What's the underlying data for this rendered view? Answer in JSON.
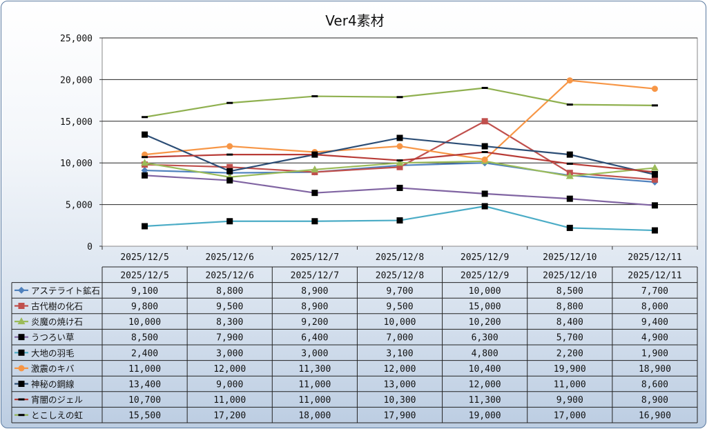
{
  "chart_data": {
    "type": "line",
    "title": "Ver4素材",
    "categories": [
      "2025/12/5",
      "2025/12/6",
      "2025/12/7",
      "2025/12/8",
      "2025/12/9",
      "2025/12/10",
      "2025/12/11"
    ],
    "ylim": [
      0,
      25000
    ],
    "yticks": [
      0,
      5000,
      10000,
      15000,
      20000,
      25000
    ],
    "ytick_labels": [
      "0",
      "5,000",
      "10,000",
      "15,000",
      "20,000",
      "25,000"
    ],
    "grid": true,
    "legend": "data-table-below",
    "series": [
      {
        "name": "アステライト鉱石",
        "color": "#4f81bd",
        "marker": "diamond",
        "values": [
          9100,
          8800,
          8900,
          9700,
          10000,
          8500,
          7700
        ],
        "labels": [
          "9,100",
          "8,800",
          "8,900",
          "9,700",
          "10,000",
          "8,500",
          "7,700"
        ]
      },
      {
        "name": "古代樹の化石",
        "color": "#c0504d",
        "marker": "square",
        "values": [
          9800,
          9500,
          8900,
          9500,
          15000,
          8800,
          8000
        ],
        "labels": [
          "9,800",
          "9,500",
          "8,900",
          "9,500",
          "15,000",
          "8,800",
          "8,000"
        ]
      },
      {
        "name": "炎魔の焼け石",
        "color": "#9bbb59",
        "marker": "triangle",
        "values": [
          10000,
          8300,
          9200,
          10000,
          10200,
          8400,
          9400
        ],
        "labels": [
          "10,000",
          "8,300",
          "9,200",
          "10,000",
          "10,200",
          "8,400",
          "9,400"
        ]
      },
      {
        "name": "うつろい草",
        "color": "#8064a2",
        "marker": "blacksquare",
        "values": [
          8500,
          7900,
          6400,
          7000,
          6300,
          5700,
          4900
        ],
        "labels": [
          "8,500",
          "7,900",
          "6,400",
          "7,000",
          "6,300",
          "5,700",
          "4,900"
        ]
      },
      {
        "name": "大地の羽毛",
        "color": "#4bacc6",
        "marker": "blacksquare",
        "values": [
          2400,
          3000,
          3000,
          3100,
          4800,
          2200,
          1900
        ],
        "labels": [
          "2,400",
          "3,000",
          "3,000",
          "3,100",
          "4,800",
          "2,200",
          "1,900"
        ]
      },
      {
        "name": "激震のキバ",
        "color": "#f79646",
        "marker": "circle",
        "values": [
          11000,
          12000,
          11300,
          12000,
          10400,
          19900,
          18900
        ],
        "labels": [
          "11,000",
          "12,000",
          "11,300",
          "12,000",
          "10,400",
          "19,900",
          "18,900"
        ]
      },
      {
        "name": "神秘の鋼線",
        "color": "#2c4d75",
        "marker": "blacksquare",
        "values": [
          13400,
          9000,
          11000,
          13000,
          12000,
          11000,
          8600
        ],
        "labels": [
          "13,400",
          "9,000",
          "11,000",
          "13,000",
          "12,000",
          "11,000",
          "8,600"
        ]
      },
      {
        "name": "宵闇のジェル",
        "color": "#b83b36",
        "marker": "dash",
        "values": [
          10700,
          11000,
          11000,
          10300,
          11300,
          9900,
          8900
        ],
        "labels": [
          "10,700",
          "11,000",
          "11,000",
          "10,300",
          "11,300",
          "9,900",
          "8,900"
        ]
      },
      {
        "name": "とこしえの虹",
        "color": "#8fb04f",
        "marker": "dash",
        "values": [
          15500,
          17200,
          18000,
          17900,
          19000,
          17000,
          16900
        ],
        "labels": [
          "15,500",
          "17,200",
          "18,000",
          "17,900",
          "19,000",
          "17,000",
          "16,900"
        ]
      }
    ]
  }
}
